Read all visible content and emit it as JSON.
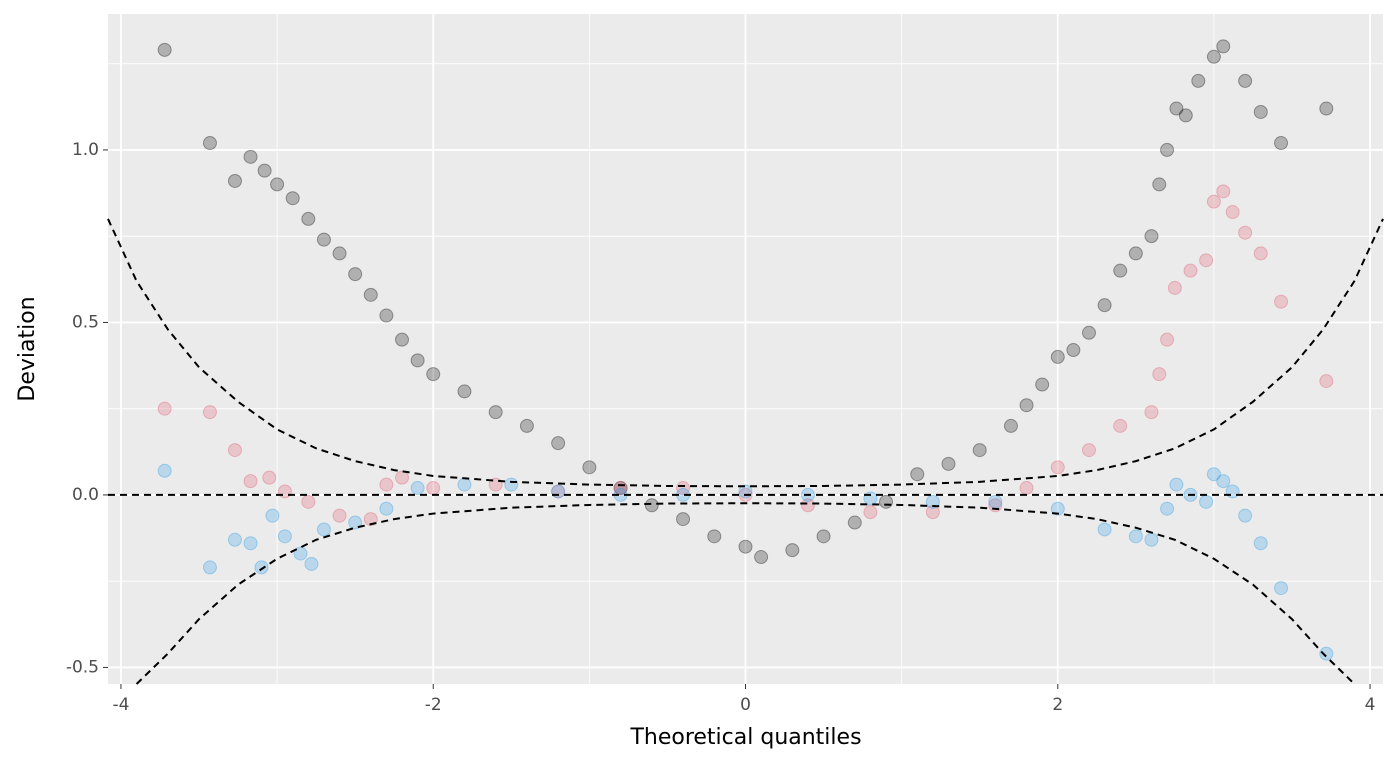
{
  "chart_data": {
    "type": "scatter",
    "x_label": "Theoretical quantiles",
    "y_label": "Deviation",
    "xlim": [
      -4.083,
      4.083
    ],
    "ylim": [
      -0.548,
      1.394
    ],
    "xticks": [
      -4,
      -2,
      0,
      2,
      4
    ],
    "yticks": [
      {
        "value": -0.5,
        "label": "-0.5"
      },
      {
        "value": 0,
        "label": "0.0"
      },
      {
        "value": 0.5,
        "label": "0.5"
      },
      {
        "value": 1,
        "label": "1.0"
      }
    ],
    "x_minor_ticks": [
      -3,
      -1,
      1,
      3
    ],
    "y_minor_ticks": [
      -0.25,
      0.25,
      0.75,
      1.25
    ],
    "grid": true,
    "point_opacity": 0.25,
    "series": [
      {
        "color": "#000000",
        "x": [
          -3.72,
          -3.43,
          -3.27,
          -3.17,
          -3.08,
          -3.0,
          -2.9,
          -2.8,
          -2.7,
          -2.6,
          -2.5,
          -2.4,
          -2.3,
          -2.2,
          -2.1,
          -2.0,
          -1.8,
          -1.6,
          -1.4,
          -1.2,
          -1.0,
          -0.8,
          -0.6,
          -0.4,
          -0.2,
          0,
          0.1,
          0.3,
          0.5,
          0.7,
          0.9,
          1.1,
          1.3,
          1.5,
          1.7,
          1.8,
          1.9,
          2.0,
          2.1,
          2.2,
          2.3,
          2.4,
          2.5,
          2.6,
          2.65,
          2.7,
          2.76,
          2.82,
          2.9,
          3.0,
          3.06,
          3.2,
          3.3,
          3.43,
          3.72
        ],
        "values": [
          1.29,
          1.02,
          0.91,
          0.98,
          0.94,
          0.9,
          0.86,
          0.8,
          0.74,
          0.7,
          0.64,
          0.58,
          0.52,
          0.45,
          0.39,
          0.35,
          0.3,
          0.24,
          0.2,
          0.15,
          0.08,
          0.02,
          -0.03,
          -0.07,
          -0.12,
          -0.15,
          -0.18,
          -0.16,
          -0.12,
          -0.08,
          -0.02,
          0.06,
          0.09,
          0.13,
          0.2,
          0.26,
          0.32,
          0.4,
          0.42,
          0.47,
          0.55,
          0.65,
          0.7,
          0.75,
          0.9,
          1.0,
          1.12,
          1.1,
          1.2,
          1.27,
          1.3,
          1.2,
          1.11,
          1.02,
          1.12
        ]
      },
      {
        "color": "#DF536B",
        "x": [
          -3.72,
          -3.43,
          -3.27,
          -3.17,
          -3.05,
          -2.95,
          -2.8,
          -2.6,
          -2.4,
          -2.3,
          -2.2,
          -2.0,
          -1.6,
          -1.2,
          -0.8,
          -0.4,
          0,
          0.4,
          0.8,
          1.2,
          1.6,
          1.8,
          2.0,
          2.2,
          2.4,
          2.6,
          2.65,
          2.7,
          2.75,
          2.85,
          2.95,
          3.0,
          3.06,
          3.12,
          3.2,
          3.3,
          3.43,
          3.72
        ],
        "values": [
          0.25,
          0.24,
          0.13,
          0.04,
          0.05,
          0.01,
          -0.02,
          -0.06,
          -0.07,
          0.03,
          0.05,
          0.02,
          0.03,
          0.01,
          0.02,
          0.02,
          0.0,
          -0.03,
          -0.05,
          -0.05,
          -0.03,
          0.02,
          0.08,
          0.13,
          0.2,
          0.24,
          0.35,
          0.45,
          0.6,
          0.65,
          0.68,
          0.85,
          0.88,
          0.82,
          0.76,
          0.7,
          0.56,
          0.33
        ]
      },
      {
        "color": "#2297E6",
        "x": [
          -3.72,
          -3.43,
          -3.27,
          -3.17,
          -3.1,
          -3.03,
          -2.95,
          -2.85,
          -2.78,
          -2.7,
          -2.5,
          -2.3,
          -2.1,
          -1.8,
          -1.5,
          -1.2,
          -0.8,
          -0.4,
          0,
          0.4,
          0.8,
          1.2,
          1.6,
          2.0,
          2.3,
          2.5,
          2.6,
          2.7,
          2.76,
          2.85,
          2.95,
          3.0,
          3.06,
          3.12,
          3.2,
          3.3,
          3.43,
          3.72
        ],
        "values": [
          0.07,
          -0.21,
          -0.13,
          -0.14,
          -0.21,
          -0.06,
          -0.12,
          -0.17,
          -0.2,
          -0.1,
          -0.08,
          -0.04,
          0.02,
          0.03,
          0.03,
          0.01,
          0.0,
          0.0,
          0.01,
          0.0,
          -0.01,
          -0.02,
          -0.02,
          -0.04,
          -0.1,
          -0.12,
          -0.13,
          -0.04,
          0.03,
          0.0,
          -0.02,
          0.06,
          0.04,
          0.01,
          -0.06,
          -0.14,
          -0.27,
          -0.46
        ]
      }
    ],
    "reference_lines": [
      {
        "x": [
          -4.083,
          -3.9,
          -3.7,
          -3.5,
          -3.25,
          -3.0,
          -2.75,
          -2.5,
          -2.25,
          -2.0,
          -1.5,
          -1.0,
          -0.5,
          0,
          0.5,
          1.0,
          1.5,
          2.0,
          2.25,
          2.5,
          2.75,
          3.0,
          3.25,
          3.5,
          3.7,
          3.9,
          4.083
        ],
        "values": [
          0.8,
          0.62,
          0.48,
          0.37,
          0.27,
          0.19,
          0.135,
          0.098,
          0.072,
          0.055,
          0.038,
          0.03,
          0.026,
          0.025,
          0.026,
          0.03,
          0.038,
          0.055,
          0.072,
          0.098,
          0.135,
          0.19,
          0.27,
          0.37,
          0.48,
          0.62,
          0.8
        ]
      },
      {
        "x": [
          -3.9,
          -3.7,
          -3.5,
          -3.25,
          -3.0,
          -2.75,
          -2.5,
          -2.25,
          -2.0,
          -1.5,
          -1.0,
          -0.5,
          0,
          0.5,
          1.0,
          1.5,
          2.0,
          2.25,
          2.5,
          2.75,
          3.0,
          3.25,
          3.5,
          3.7,
          3.9
        ],
        "values": [
          -0.548,
          -0.46,
          -0.36,
          -0.26,
          -0.185,
          -0.13,
          -0.095,
          -0.07,
          -0.054,
          -0.037,
          -0.029,
          -0.025,
          -0.024,
          -0.025,
          -0.029,
          -0.037,
          -0.054,
          -0.07,
          -0.095,
          -0.13,
          -0.185,
          -0.26,
          -0.36,
          -0.46,
          -0.548
        ]
      },
      {
        "x": [
          -4.083,
          4.083
        ],
        "values": [
          0,
          0
        ]
      }
    ]
  }
}
